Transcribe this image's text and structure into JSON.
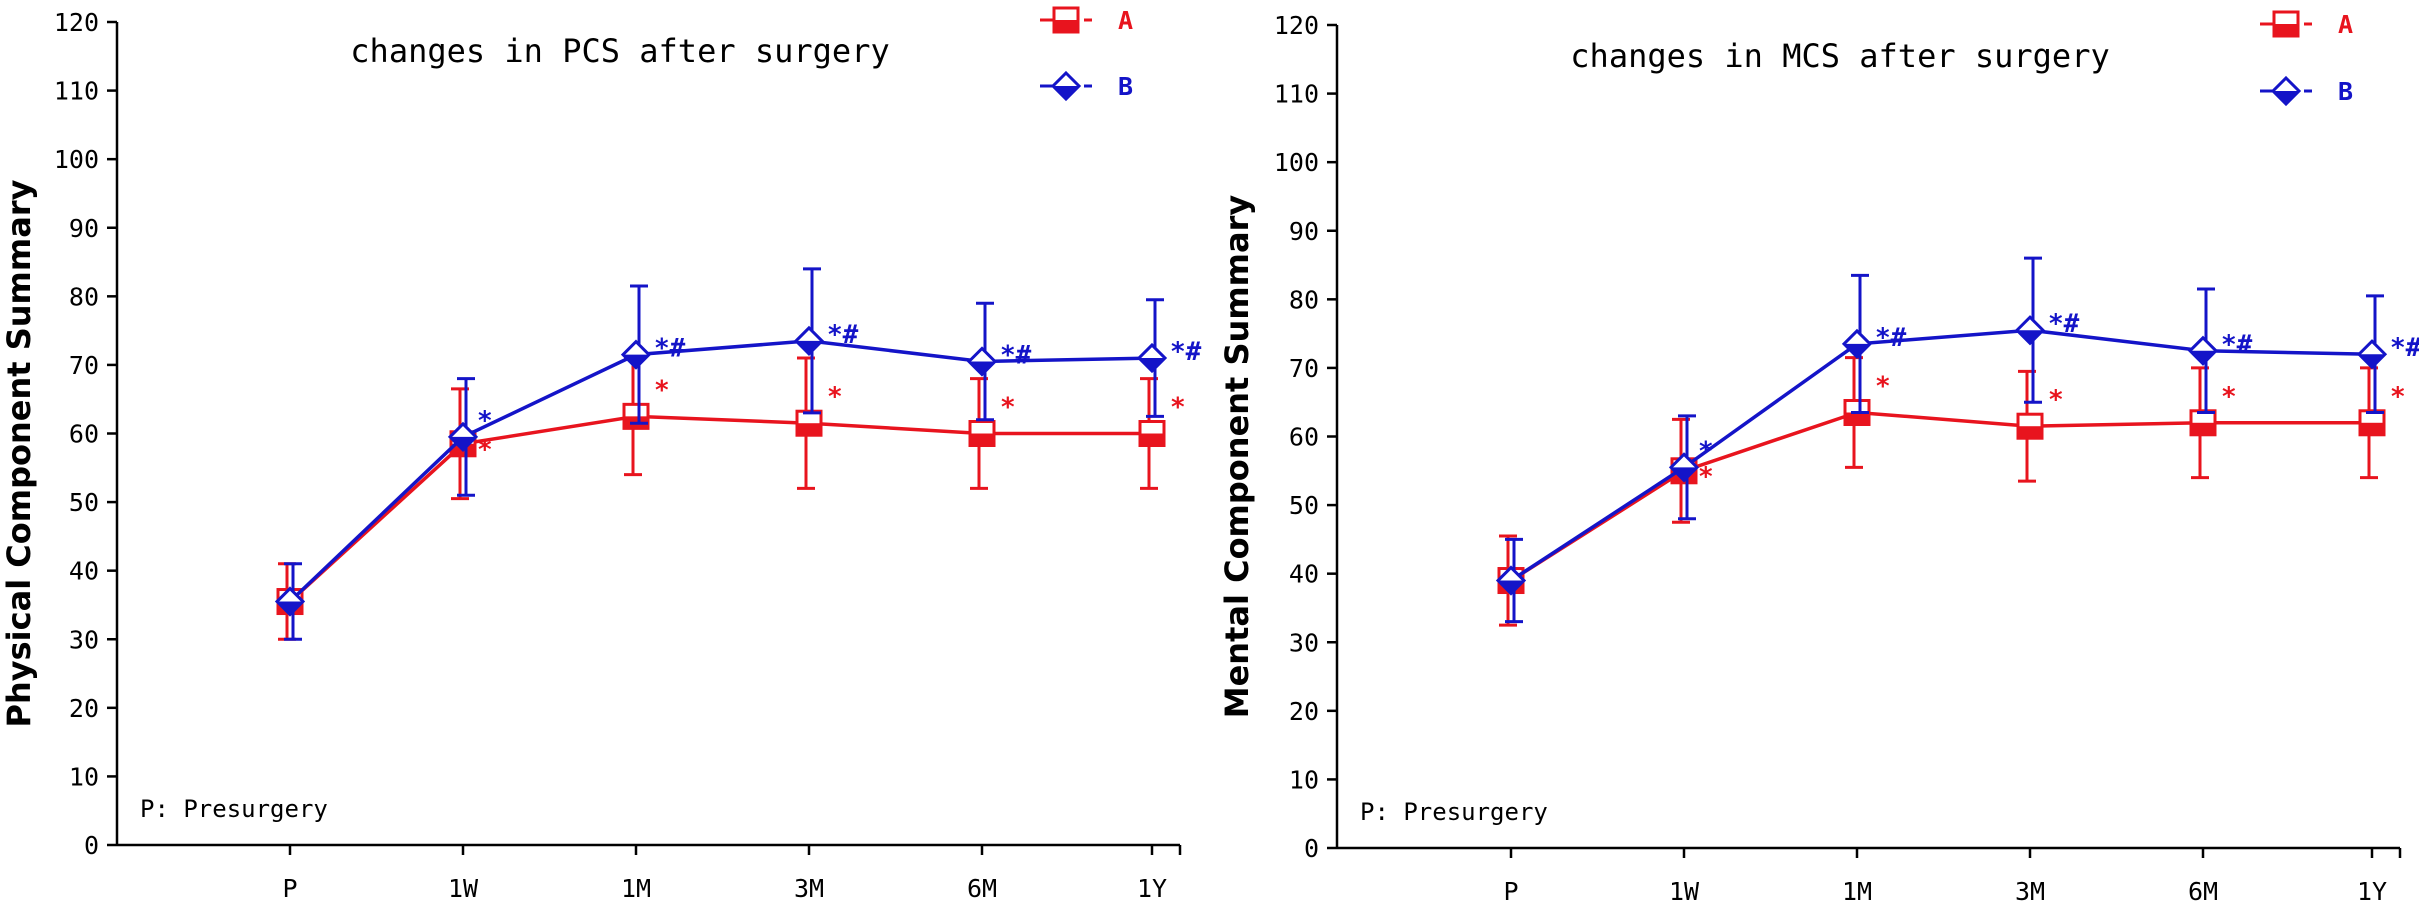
{
  "chart_data": [
    {
      "type": "line",
      "title": "changes in PCS after surgery",
      "xlabel": "",
      "ylabel": "Physical Component Summary",
      "ylim": [
        0,
        120
      ],
      "yticks": [
        0,
        10,
        20,
        30,
        40,
        50,
        60,
        70,
        80,
        90,
        100,
        110,
        120
      ],
      "categories": [
        "P",
        "1W",
        "1M",
        "3M",
        "6M",
        "1Y"
      ],
      "note": "P: Presurgery",
      "legend_position": "top-right",
      "series": [
        {
          "name": "A",
          "color": "#e8141e",
          "marker": "half-filled-square",
          "values": [
            35.5,
            58.5,
            62.5,
            61.5,
            60,
            60
          ],
          "err_upper": [
            41,
            66.5,
            71,
            71,
            68,
            68
          ],
          "err_lower": [
            30,
            50.5,
            54,
            52,
            52,
            52
          ],
          "annotations": [
            "",
            "*",
            "*",
            "*",
            "*",
            "*"
          ]
        },
        {
          "name": "B",
          "color": "#1414c8",
          "marker": "half-filled-diamond",
          "values": [
            35.5,
            59.5,
            71.5,
            73.5,
            70.5,
            71
          ],
          "err_upper": [
            41,
            68,
            81.5,
            84,
            79,
            79.5
          ],
          "err_lower": [
            30,
            51,
            61.5,
            63,
            62,
            62.5
          ],
          "annotations": [
            "",
            "*",
            "*#",
            "*#",
            "*#",
            "*#"
          ]
        }
      ]
    },
    {
      "type": "line",
      "title": "changes in MCS after surgery",
      "xlabel": "",
      "ylabel": "Mental Component Summary",
      "ylim": [
        0,
        120
      ],
      "yticks": [
        0,
        10,
        20,
        30,
        40,
        50,
        60,
        70,
        80,
        90,
        100,
        110,
        120
      ],
      "categories": [
        "P",
        "1W",
        "1M",
        "3M",
        "6M",
        "1Y"
      ],
      "note": "P: Presurgery",
      "legend_position": "top-right",
      "series": [
        {
          "name": "A",
          "color": "#e8141e",
          "marker": "half-filled-square",
          "values": [
            39,
            55,
            63.5,
            61.5,
            62,
            62
          ],
          "err_upper": [
            45.5,
            62.5,
            71.5,
            69.5,
            70,
            70
          ],
          "err_lower": [
            32.5,
            47.5,
            55.5,
            53.5,
            54,
            54
          ],
          "annotations": [
            "",
            "*",
            "*",
            "*",
            "*",
            "*"
          ]
        },
        {
          "name": "B",
          "color": "#1414c8",
          "marker": "half-filled-diamond",
          "values": [
            39,
            55.5,
            73.5,
            75.5,
            72.5,
            72
          ],
          "err_upper": [
            45,
            63,
            83.5,
            86,
            81.5,
            80.5
          ],
          "err_lower": [
            33,
            48,
            63.5,
            65,
            63.5,
            63.5
          ],
          "annotations": [
            "",
            "*",
            "*#",
            "*#",
            "*#",
            "*#"
          ]
        }
      ]
    }
  ]
}
